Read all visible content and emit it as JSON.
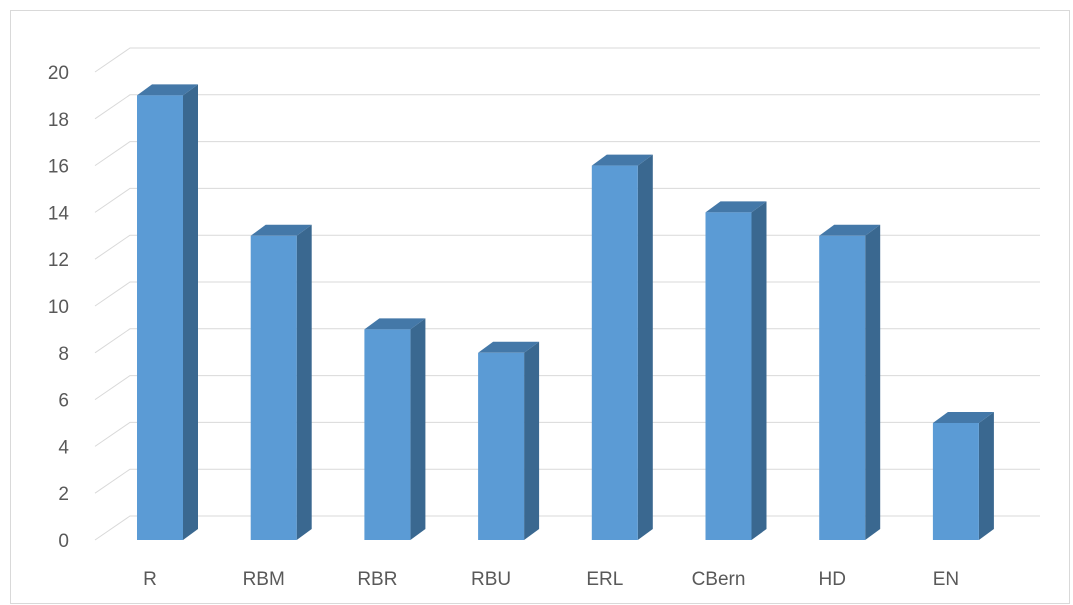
{
  "chart_data": {
    "type": "bar",
    "title": "",
    "xlabel": "",
    "ylabel": "",
    "categories": [
      "R",
      "RBM",
      "RBR",
      "RBU",
      "ERL",
      "CBern",
      "HD",
      "EN"
    ],
    "values": [
      19,
      13,
      9,
      8,
      16,
      14,
      13,
      5
    ],
    "yticks": [
      "0",
      "2",
      "4",
      "6",
      "8",
      "10",
      "12",
      "14",
      "16",
      "18",
      "20"
    ],
    "ylim": [
      0,
      20
    ],
    "grid": true,
    "legend": "none",
    "style": "3d-column"
  },
  "colors": {
    "bar_front": "#5b9bd5",
    "bar_side": "#3a6890",
    "bar_top": "#4478a8",
    "gridline": "#d9d9d9",
    "label": "#595959"
  }
}
